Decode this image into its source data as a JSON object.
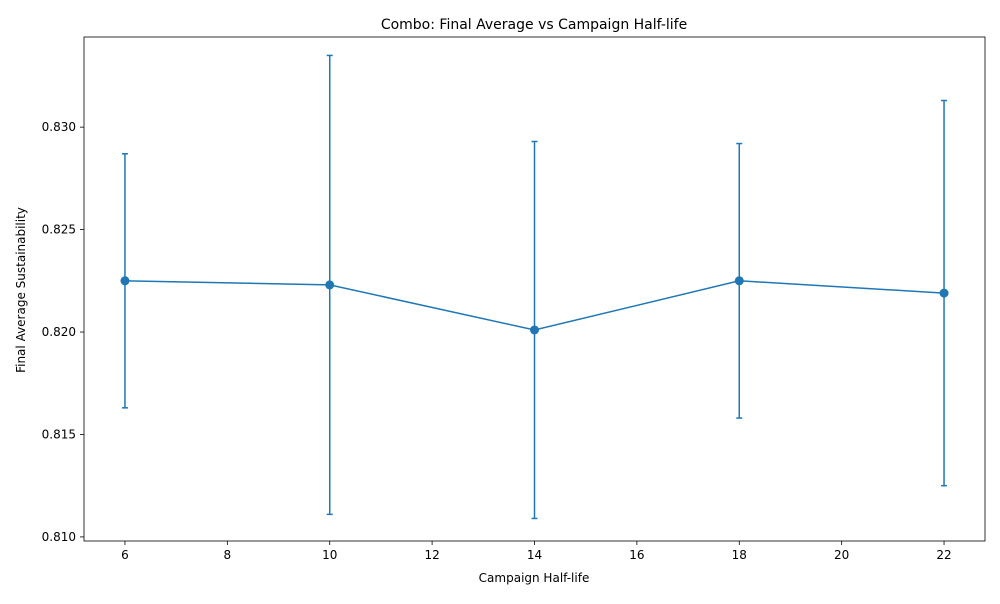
{
  "chart_data": {
    "type": "line",
    "title": "Combo: Final Average vs Campaign Half-life",
    "xlabel": "Campaign Half-life",
    "ylabel": "Final Average Sustainability",
    "xlim": [
      5.2,
      22.8
    ],
    "ylim": [
      0.8098,
      0.8344
    ],
    "xticks": [
      6,
      8,
      10,
      12,
      14,
      16,
      18,
      20,
      22
    ],
    "yticks": [
      0.81,
      0.815,
      0.82,
      0.825,
      0.83
    ],
    "ytick_labels": [
      "0.810",
      "0.815",
      "0.820",
      "0.825",
      "0.830"
    ],
    "grid": false,
    "series": [
      {
        "x": [
          6,
          10,
          14,
          18,
          22
        ],
        "y": [
          0.8225,
          0.8223,
          0.8201,
          0.8225,
          0.8219
        ],
        "yerr": [
          0.0062,
          0.0112,
          0.0092,
          0.0067,
          0.0094
        ],
        "color": "#1f77b4",
        "marker": "circle"
      }
    ]
  }
}
